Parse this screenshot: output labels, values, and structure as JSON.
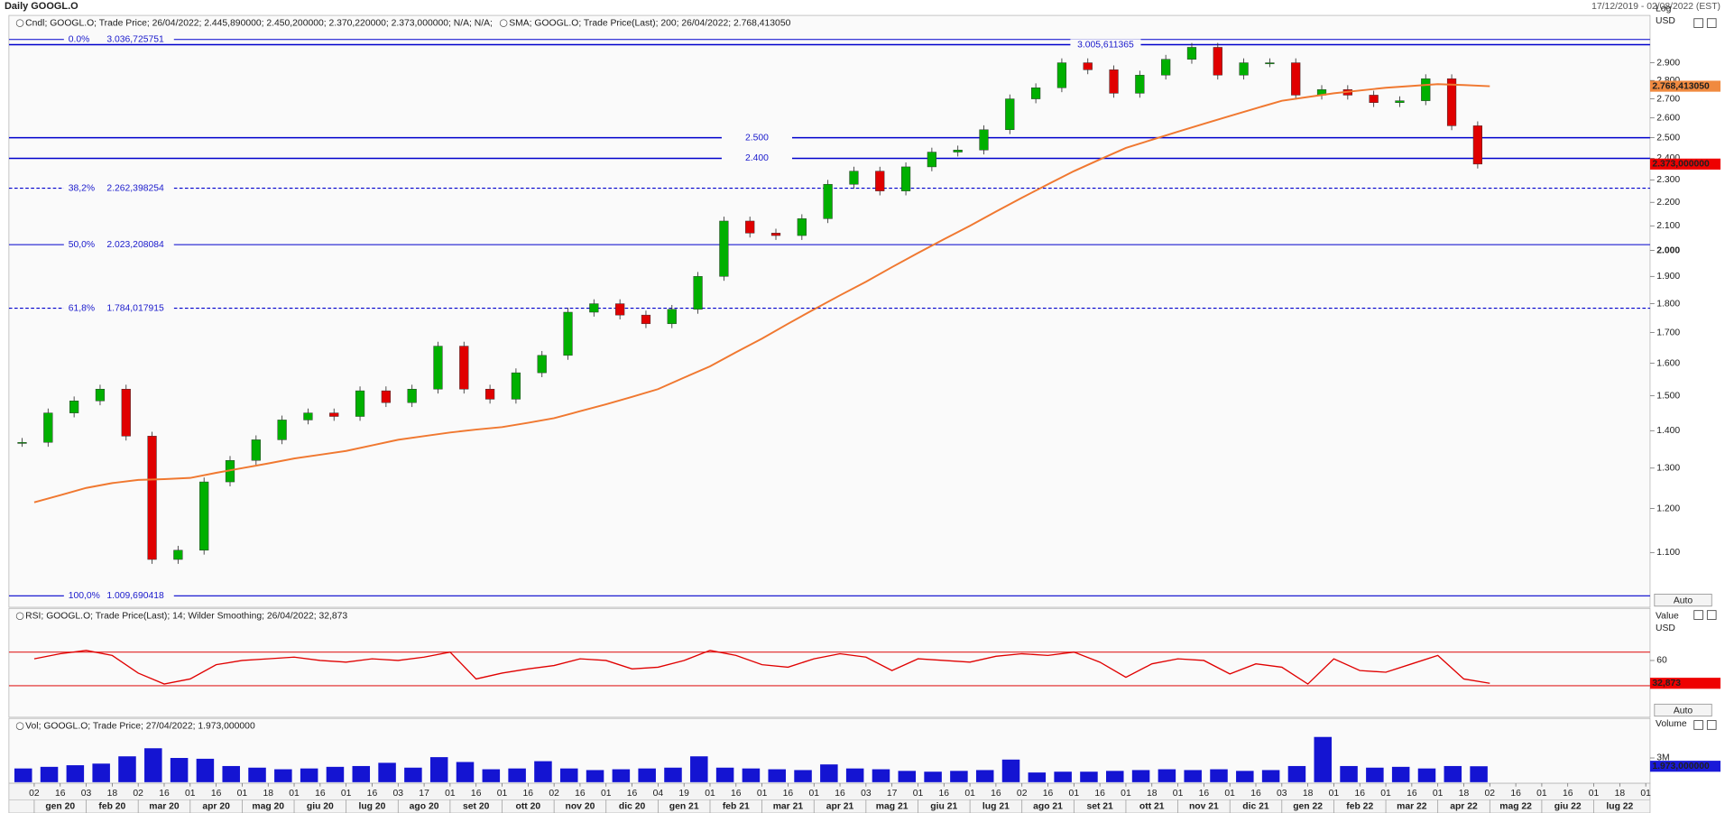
{
  "header": {
    "title": "Daily GOOGL.O",
    "range": "17/12/2019 - 02/08/2022 (EST)",
    "auto": "Auto"
  },
  "chart_data": [
    {
      "type": "candlestick",
      "log_scale": true,
      "y_label": "Log",
      "y_unit": "USD",
      "ylim": [
        987,
        3185
      ],
      "yticks": [
        {
          "value": 1100,
          "label": "1.100"
        },
        {
          "value": 1200,
          "label": "1.200"
        },
        {
          "value": 1300,
          "label": "1.300"
        },
        {
          "value": 1400,
          "label": "1.400"
        },
        {
          "value": 1500,
          "label": "1.500"
        },
        {
          "value": 1600,
          "label": "1.600"
        },
        {
          "value": 1700,
          "label": "1.700"
        },
        {
          "value": 1800,
          "label": "1.800"
        },
        {
          "value": 1900,
          "label": "1.900"
        },
        {
          "value": 2000,
          "label": "2.000"
        },
        {
          "value": 2100,
          "label": "2.100"
        },
        {
          "value": 2200,
          "label": "2.200"
        },
        {
          "value": 2300,
          "label": "2.300"
        },
        {
          "value": 2400,
          "label": "2.400"
        },
        {
          "value": 2500,
          "label": "2.500"
        },
        {
          "value": 2600,
          "label": "2.600"
        },
        {
          "value": 2700,
          "label": "2.700"
        },
        {
          "value": 2800,
          "label": "2.800"
        },
        {
          "value": 2900,
          "label": "2.900"
        }
      ],
      "bold_tick": 2000,
      "fib_levels": [
        {
          "pct": {
            "value": 0,
            "label": "0.0%"
          },
          "value": 3036.725751,
          "label": "3.036,725751",
          "dashed": false
        },
        {
          "pct": {
            "value": 38.2,
            "label": "38,2%"
          },
          "value": 2262.398254,
          "label": "2.262,398254",
          "dashed": true
        },
        {
          "pct": {
            "value": 50,
            "label": "50,0%"
          },
          "value": 2023.208084,
          "label": "2.023,208084",
          "dashed": false
        },
        {
          "pct": {
            "value": 61.8,
            "label": "61,8%"
          },
          "value": 1784.017915,
          "label": "1.784,017915",
          "dashed": true
        },
        {
          "pct": {
            "value": 100,
            "label": "100,0%"
          },
          "value": 1009.690418,
          "label": "1.009,690418",
          "dashed": false
        }
      ],
      "lines": [
        {
          "value": 3005.611365,
          "label": "3.005,611365"
        },
        {
          "value": 2500,
          "label": "2.500"
        },
        {
          "value": 2400,
          "label": "2.400"
        }
      ],
      "line_color": "#0000cc",
      "series": [
        {
          "name": "Cndl; GOOGL.O; Trade Price; 26/04/2022; 2.445,890000; 2.450,200000; 2.370,220000; 2.373,000000; N/A; N/A;",
          "up_color": "#00b000",
          "down_color": "#e00000",
          "label_color": "#ee0000",
          "legend_color": "#cc0000",
          "values": [
            1368,
            1450,
            1485,
            1520,
            1385,
            1085,
            1105,
            1265,
            1320,
            1375,
            1430,
            1450,
            1440,
            1515,
            1480,
            1520,
            1655,
            1520,
            1490,
            1570,
            1625,
            1770,
            1800,
            1760,
            1730,
            1780,
            1900,
            2120,
            2070,
            2060,
            2130,
            2280,
            2340,
            2250,
            2360,
            2430,
            2440,
            2540,
            2700,
            2760,
            2900,
            2860,
            2730,
            2830,
            2920,
            2990,
            2830,
            2900,
            2900,
            2720,
            2750,
            2720,
            2680,
            2690,
            2810,
            2560,
            2373,
            null,
            null,
            null,
            null,
            null,
            null
          ],
          "value_labels": [
            null,
            null,
            null,
            null,
            null,
            null,
            null,
            null,
            null,
            null,
            null,
            null,
            null,
            null,
            null,
            null,
            null,
            null,
            null,
            null,
            null,
            null,
            null,
            null,
            null,
            null,
            null,
            null,
            null,
            null,
            null,
            null,
            null,
            null,
            null,
            null,
            null,
            null,
            null,
            null,
            null,
            null,
            null,
            null,
            null,
            null,
            null,
            null,
            null,
            null,
            null,
            null,
            null,
            null,
            null,
            null,
            "2.373,000000",
            null,
            null,
            null,
            null,
            null,
            null
          ]
        },
        {
          "name": "SMA; GOOGL.O; Trade Price(Last);  200;  26/04/2022; 2.768,413050",
          "color": "#f07830",
          "label_color": "#f08a40",
          "legend_color": "#e87020",
          "values": [
            1215,
            1232,
            1250,
            1262,
            1270,
            1272,
            1275,
            1288,
            1300,
            1312,
            1325,
            1335,
            1345,
            1360,
            1375,
            1385,
            1395,
            1403,
            1410,
            1422,
            1435,
            1455,
            1475,
            1497,
            1520,
            1555,
            1590,
            1635,
            1680,
            1730,
            1780,
            1830,
            1880,
            1935,
            1990,
            2045,
            2100,
            2160,
            2220,
            2280,
            2340,
            2395,
            2450,
            2490,
            2530,
            2570,
            2610,
            2650,
            2690,
            2710,
            2730,
            2745,
            2760,
            2770,
            2780,
            2775,
            2768.41305,
            null,
            null,
            null,
            null,
            null,
            null
          ],
          "value_labels": [
            null,
            null,
            null,
            null,
            null,
            null,
            null,
            null,
            null,
            null,
            null,
            null,
            null,
            null,
            null,
            null,
            null,
            null,
            null,
            null,
            null,
            null,
            null,
            null,
            null,
            null,
            null,
            null,
            null,
            null,
            null,
            null,
            null,
            null,
            null,
            null,
            null,
            null,
            null,
            null,
            null,
            null,
            null,
            null,
            null,
            null,
            null,
            null,
            null,
            null,
            null,
            null,
            null,
            null,
            null,
            null,
            "2.768,413050",
            null,
            null,
            null,
            null,
            null,
            null
          ]
        }
      ]
    },
    {
      "type": "line",
      "y_label": "Value",
      "y_unit": "USD",
      "ylim": [
        -5,
        105
      ],
      "yticks": [
        60
      ],
      "levels": [
        70,
        30
      ],
      "level_color": "#e02020",
      "series": [
        {
          "name": "RSI; GOOGL.O; Trade Price(Last);  14; Wilder Smoothing;  26/04/2022; 32,873",
          "color": "#e00000",
          "label_color": "#ee0000",
          "legend_color": "#202080",
          "values": [
            62,
            68,
            72,
            66,
            45,
            32,
            38,
            55,
            60,
            62,
            64,
            60,
            58,
            62,
            60,
            64,
            70,
            38,
            45,
            50,
            54,
            62,
            60,
            50,
            52,
            60,
            72,
            66,
            55,
            52,
            62,
            68,
            64,
            48,
            62,
            60,
            58,
            65,
            68,
            66,
            70,
            58,
            40,
            56,
            62,
            60,
            44,
            56,
            52,
            32,
            62,
            48,
            46,
            56,
            66,
            38,
            32.873,
            null,
            null,
            null,
            null,
            null,
            null
          ],
          "value_labels": [
            null,
            null,
            null,
            null,
            null,
            null,
            null,
            null,
            null,
            null,
            null,
            null,
            null,
            null,
            null,
            null,
            null,
            null,
            null,
            null,
            null,
            null,
            null,
            null,
            null,
            null,
            null,
            null,
            null,
            null,
            null,
            null,
            null,
            null,
            null,
            null,
            null,
            null,
            null,
            null,
            null,
            null,
            null,
            null,
            null,
            null,
            null,
            null,
            null,
            null,
            null,
            null,
            null,
            null,
            null,
            null,
            "32,873",
            null,
            null,
            null,
            null,
            null,
            null
          ]
        }
      ]
    },
    {
      "type": "bar",
      "y_label": "Volume",
      "ylim": [
        0,
        6400
      ],
      "yticks": [
        {
          "value": 3000,
          "label": "3M"
        }
      ],
      "categories": [
        "02",
        "16",
        "03",
        "18",
        "02",
        "16",
        "01",
        "16",
        "01",
        "18",
        "01",
        "16",
        "01",
        "16",
        "03",
        "17",
        "01",
        "16",
        "01",
        "16",
        "02",
        "16",
        "01",
        "16",
        "04",
        "19",
        "01",
        "16",
        "01",
        "16",
        "01",
        "16",
        "03",
        "17",
        "01",
        "16",
        "01",
        "16",
        "02",
        "16",
        "01",
        "16",
        "01",
        "18",
        "01",
        "16",
        "01",
        "16",
        "03",
        "18",
        "01",
        "16",
        "01",
        "16",
        "01",
        "18",
        "02",
        "16",
        "01",
        "16",
        "01",
        "18",
        "01"
      ],
      "months": [
        "gen 20",
        "feb 20",
        "mar 20",
        "apr 20",
        "mag 20",
        "giu 20",
        "lug 20",
        "ago 20",
        "set 20",
        "ott 20",
        "nov 20",
        "dic 20",
        "gen 21",
        "feb 21",
        "mar 21",
        "apr 21",
        "mag 21",
        "giu 21",
        "lug 21",
        "ago 21",
        "set 21",
        "ott 21",
        "nov 21",
        "dic 21",
        "gen 22",
        "feb 22",
        "mar 22",
        "apr 22",
        "mag 22",
        "giu 22",
        "lug 22"
      ],
      "series": [
        {
          "name": "Vol; GOOGL.O; Trade Price; 27/04/2022; 1.973,000000",
          "color": "#1414d2",
          "label_color": "#1a1ad8",
          "legend_color": "#202080",
          "values": [
            1700,
            1900,
            2100,
            2300,
            3200,
            4200,
            3000,
            2900,
            2000,
            1800,
            1600,
            1700,
            1900,
            2000,
            2400,
            1800,
            3100,
            2500,
            1600,
            1700,
            2600,
            1700,
            1500,
            1600,
            1700,
            1800,
            3200,
            1800,
            1700,
            1600,
            1500,
            2200,
            1700,
            1600,
            1400,
            1300,
            1400,
            1500,
            2800,
            1200,
            1300,
            1300,
            1400,
            1500,
            1600,
            1500,
            1600,
            1400,
            1500,
            2000,
            5600,
            2000,
            1800,
            1900,
            1700,
            2000,
            1973,
            null,
            null,
            null,
            null,
            null,
            null
          ],
          "value_labels": [
            null,
            null,
            null,
            null,
            null,
            null,
            null,
            null,
            null,
            null,
            null,
            null,
            null,
            null,
            null,
            null,
            null,
            null,
            null,
            null,
            null,
            null,
            null,
            null,
            null,
            null,
            null,
            null,
            null,
            null,
            null,
            null,
            null,
            null,
            null,
            null,
            null,
            null,
            null,
            null,
            null,
            null,
            null,
            null,
            null,
            null,
            null,
            null,
            null,
            null,
            null,
            null,
            null,
            null,
            null,
            null,
            "1.973,000000",
            null,
            null,
            null,
            null,
            null,
            null
          ]
        }
      ]
    }
  ]
}
